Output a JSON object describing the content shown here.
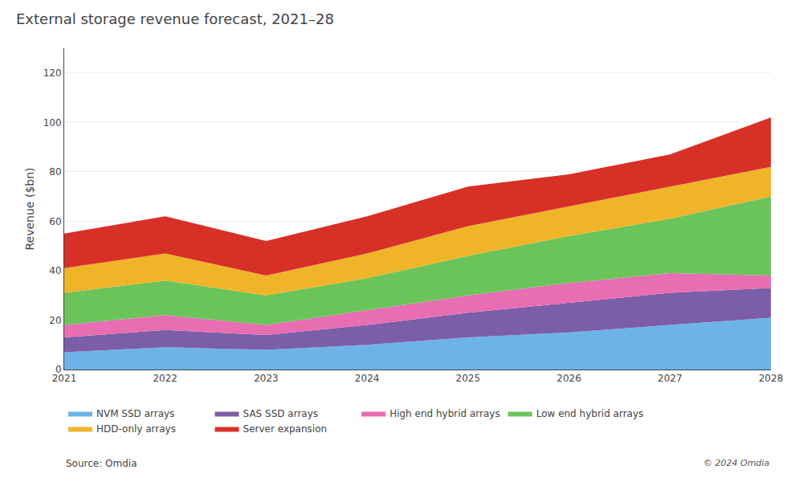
{
  "chart_data": {
    "type": "area",
    "stacked": true,
    "title": "External storage revenue forecast, 2021–28",
    "ylabel": "Revenue ($bn)",
    "x": [
      2021,
      2022,
      2023,
      2024,
      2025,
      2026,
      2027,
      2028
    ],
    "series": [
      {
        "name": "NVM SSD arrays",
        "color": "#6db3e8",
        "values": [
          7,
          9,
          8,
          10,
          13,
          15,
          18,
          21
        ]
      },
      {
        "name": "SAS SSD arrays",
        "color": "#7b5ea7",
        "values": [
          6,
          7,
          6,
          8,
          10,
          12,
          13,
          12
        ]
      },
      {
        "name": "High end hybrid arrays",
        "color": "#e86db3",
        "values": [
          5,
          6,
          4,
          6,
          7,
          8,
          8,
          5
        ]
      },
      {
        "name": "Low end hybrid arrays",
        "color": "#6bc45a",
        "values": [
          13,
          14,
          12,
          13,
          16,
          19,
          22,
          32
        ]
      },
      {
        "name": "HDD-only arrays",
        "color": "#f0b429",
        "values": [
          10,
          11,
          8,
          10,
          12,
          12,
          13,
          12
        ]
      },
      {
        "name": "Server expansion",
        "color": "#d73027",
        "values": [
          14,
          15,
          14,
          15,
          16,
          13,
          13,
          20
        ]
      }
    ],
    "xlim": [
      2021,
      2028
    ],
    "xticks": [
      2021,
      2022,
      2023,
      2024,
      2025,
      2026,
      2027,
      2028
    ],
    "ylim": [
      0,
      130
    ],
    "yticks": [
      0,
      20,
      40,
      60,
      80,
      100,
      120
    ],
    "grid": true,
    "legend": "bottom",
    "annotations": [
      "© 2024 Omdia",
      "Source: Omdia"
    ]
  }
}
